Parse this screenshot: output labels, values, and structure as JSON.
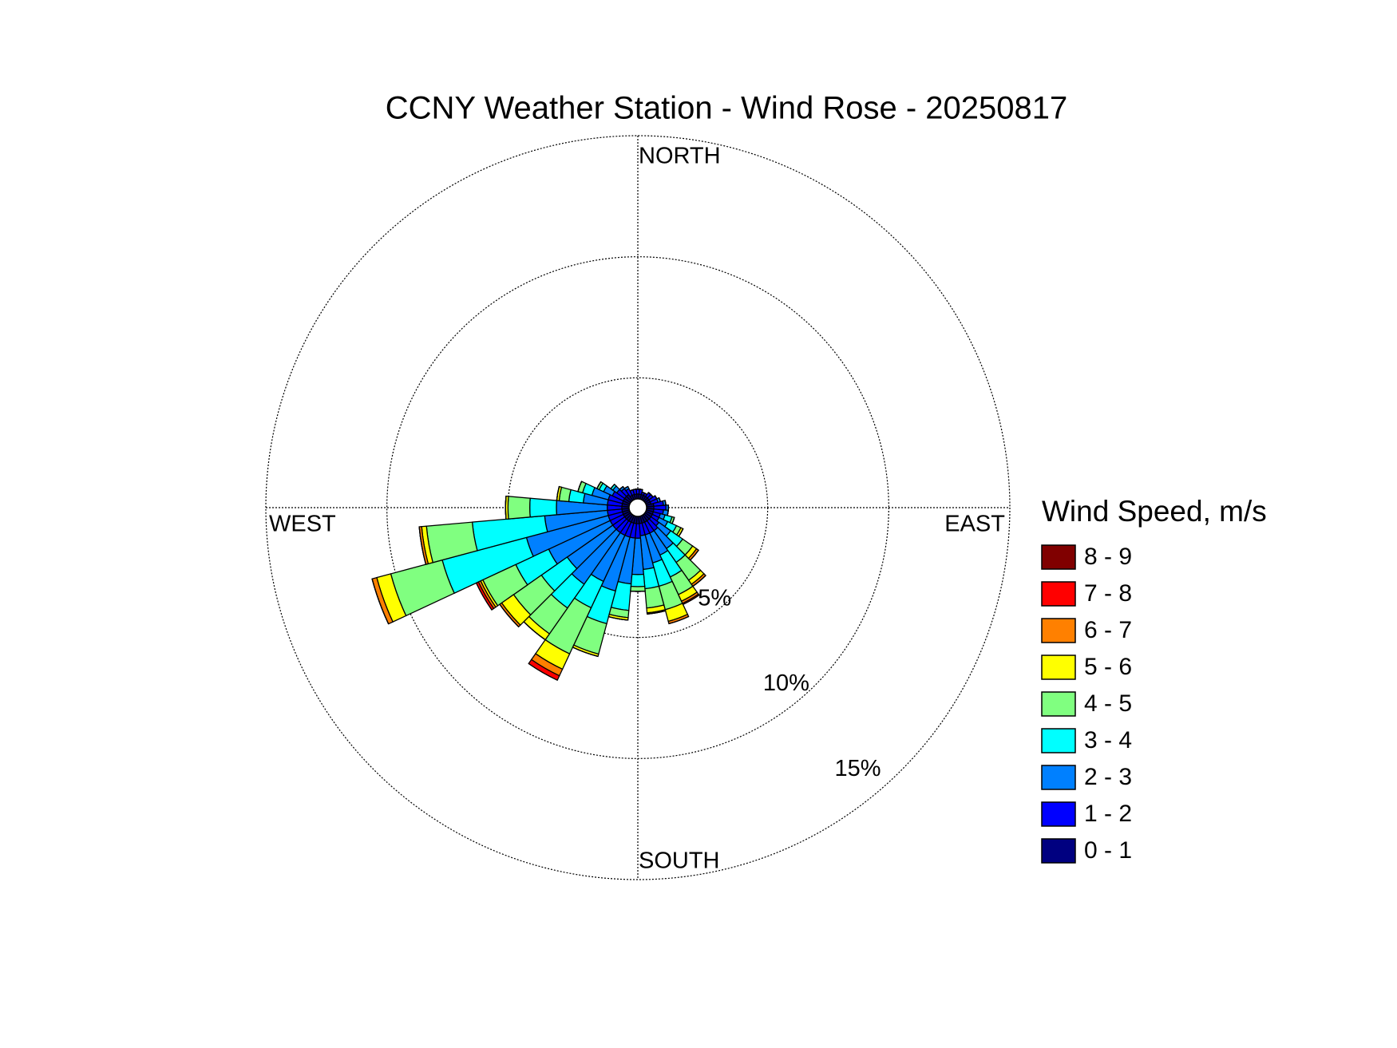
{
  "chart_data": {
    "type": "windrose",
    "title": "CCNY Weather Station - Wind Rose - 20250817",
    "direction_labels": {
      "north": "NORTH",
      "east": "EAST",
      "south": "SOUTH",
      "west": "WEST"
    },
    "legend_title": "Wind Speed, m/s",
    "directions": [
      0,
      10,
      20,
      30,
      40,
      50,
      60,
      70,
      80,
      90,
      100,
      110,
      120,
      130,
      140,
      150,
      160,
      170,
      180,
      190,
      200,
      210,
      220,
      230,
      240,
      250,
      260,
      270,
      280,
      290,
      300,
      310,
      320,
      330,
      340,
      350
    ],
    "rlim": [
      0,
      15
    ],
    "rticks": [
      {
        "value": 5,
        "label": "5%"
      },
      {
        "value": 10,
        "label": "10%"
      },
      {
        "value": 15,
        "label": "15%"
      }
    ],
    "grid": true,
    "series": [
      {
        "name": "0 - 1",
        "color": "#000080",
        "values": [
          0.2,
          0.2,
          0.2,
          0.2,
          0.2,
          0.2,
          0.2,
          0.2,
          0.3,
          0.3,
          0.3,
          0.3,
          0.3,
          0.3,
          0.3,
          0.3,
          0.3,
          0.3,
          0.3,
          0.3,
          0.3,
          0.3,
          0.3,
          0.3,
          0.3,
          0.3,
          0.3,
          0.3,
          0.3,
          0.3,
          0.3,
          0.3,
          0.3,
          0.2,
          0.2,
          0.2
        ]
      },
      {
        "name": "1 - 2",
        "color": "#0000ff",
        "values": [
          0.2,
          0.2,
          0.1,
          0.1,
          0.2,
          0.2,
          0.3,
          0.3,
          0.4,
          0.5,
          0.4,
          0.3,
          0.3,
          0.4,
          0.5,
          0.5,
          0.5,
          0.5,
          0.6,
          0.6,
          0.6,
          0.6,
          0.6,
          0.6,
          0.6,
          0.6,
          0.6,
          0.6,
          0.6,
          0.6,
          0.5,
          0.4,
          0.3,
          0.3,
          0.2,
          0.2
        ]
      },
      {
        "name": "2 - 3",
        "color": "#0080ff",
        "values": [
          0,
          0,
          0,
          0,
          0,
          0,
          0,
          0.1,
          0.1,
          0.1,
          0.2,
          0.2,
          0.4,
          0.6,
          0.9,
          1.0,
          1.2,
          1.4,
          1.5,
          1.9,
          2.3,
          2.1,
          2.6,
          2.3,
          2.8,
          3.5,
          2.6,
          2.1,
          1.0,
          0.7,
          0.4,
          0.2,
          0.1,
          0.1,
          0,
          0
        ]
      },
      {
        "name": "3 - 4",
        "color": "#00ffff",
        "values": [
          0,
          0,
          0,
          0,
          0,
          0,
          0,
          0,
          0,
          0,
          0,
          0.3,
          0.4,
          0.6,
          0.7,
          1.0,
          1.0,
          0.8,
          0.5,
          1.1,
          1.4,
          1.2,
          1.2,
          1.3,
          1.5,
          3.6,
          3.0,
          1.1,
          0.6,
          0.4,
          0.2,
          0.1,
          0,
          0,
          0,
          0
        ]
      },
      {
        "name": "4 - 5",
        "color": "#80ff80",
        "values": [
          0,
          0,
          0,
          0,
          0,
          0,
          0,
          0,
          0,
          0,
          0,
          0.1,
          0.2,
          0.5,
          0.9,
          0.8,
          1.0,
          0.8,
          0.2,
          0.3,
          1.3,
          2.1,
          1.3,
          1.4,
          1.5,
          2.2,
          1.9,
          0.9,
          0.4,
          0.2,
          0.1,
          0,
          0,
          0,
          0,
          0
        ]
      },
      {
        "name": "5 - 6",
        "color": "#ffff00",
        "values": [
          0,
          0,
          0,
          0,
          0,
          0,
          0,
          0,
          0,
          0,
          0,
          0,
          0.1,
          0.2,
          0.2,
          0.3,
          0.5,
          0.2,
          0,
          0.1,
          0.1,
          0.7,
          0.3,
          0.6,
          0.1,
          0.6,
          0.2,
          0.1,
          0.1,
          0,
          0,
          0,
          0,
          0,
          0,
          0
        ]
      },
      {
        "name": "6 - 7",
        "color": "#ff8000",
        "values": [
          0,
          0,
          0,
          0,
          0,
          0,
          0,
          0,
          0,
          0,
          0,
          0,
          0,
          0.1,
          0.1,
          0.1,
          0.1,
          0.05,
          0,
          0,
          0,
          0.3,
          0,
          0.1,
          0.1,
          0.2,
          0.1,
          0,
          0,
          0,
          0,
          0,
          0,
          0,
          0,
          0
        ]
      },
      {
        "name": "7 - 8",
        "color": "#ff0000",
        "values": [
          0,
          0,
          0,
          0,
          0,
          0,
          0,
          0,
          0,
          0,
          0,
          0,
          0,
          0,
          0,
          0.05,
          0,
          0,
          0,
          0,
          0,
          0.2,
          0,
          0,
          0.1,
          0,
          0,
          0,
          0,
          0,
          0,
          0,
          0,
          0,
          0,
          0
        ]
      },
      {
        "name": "8 - 9",
        "color": "#800000",
        "values": [
          0,
          0,
          0,
          0,
          0,
          0,
          0,
          0,
          0,
          0,
          0,
          0,
          0,
          0,
          0,
          0,
          0,
          0,
          0,
          0,
          0,
          0,
          0,
          0,
          0,
          0,
          0,
          0,
          0,
          0,
          0,
          0,
          0,
          0,
          0,
          0
        ]
      }
    ]
  }
}
